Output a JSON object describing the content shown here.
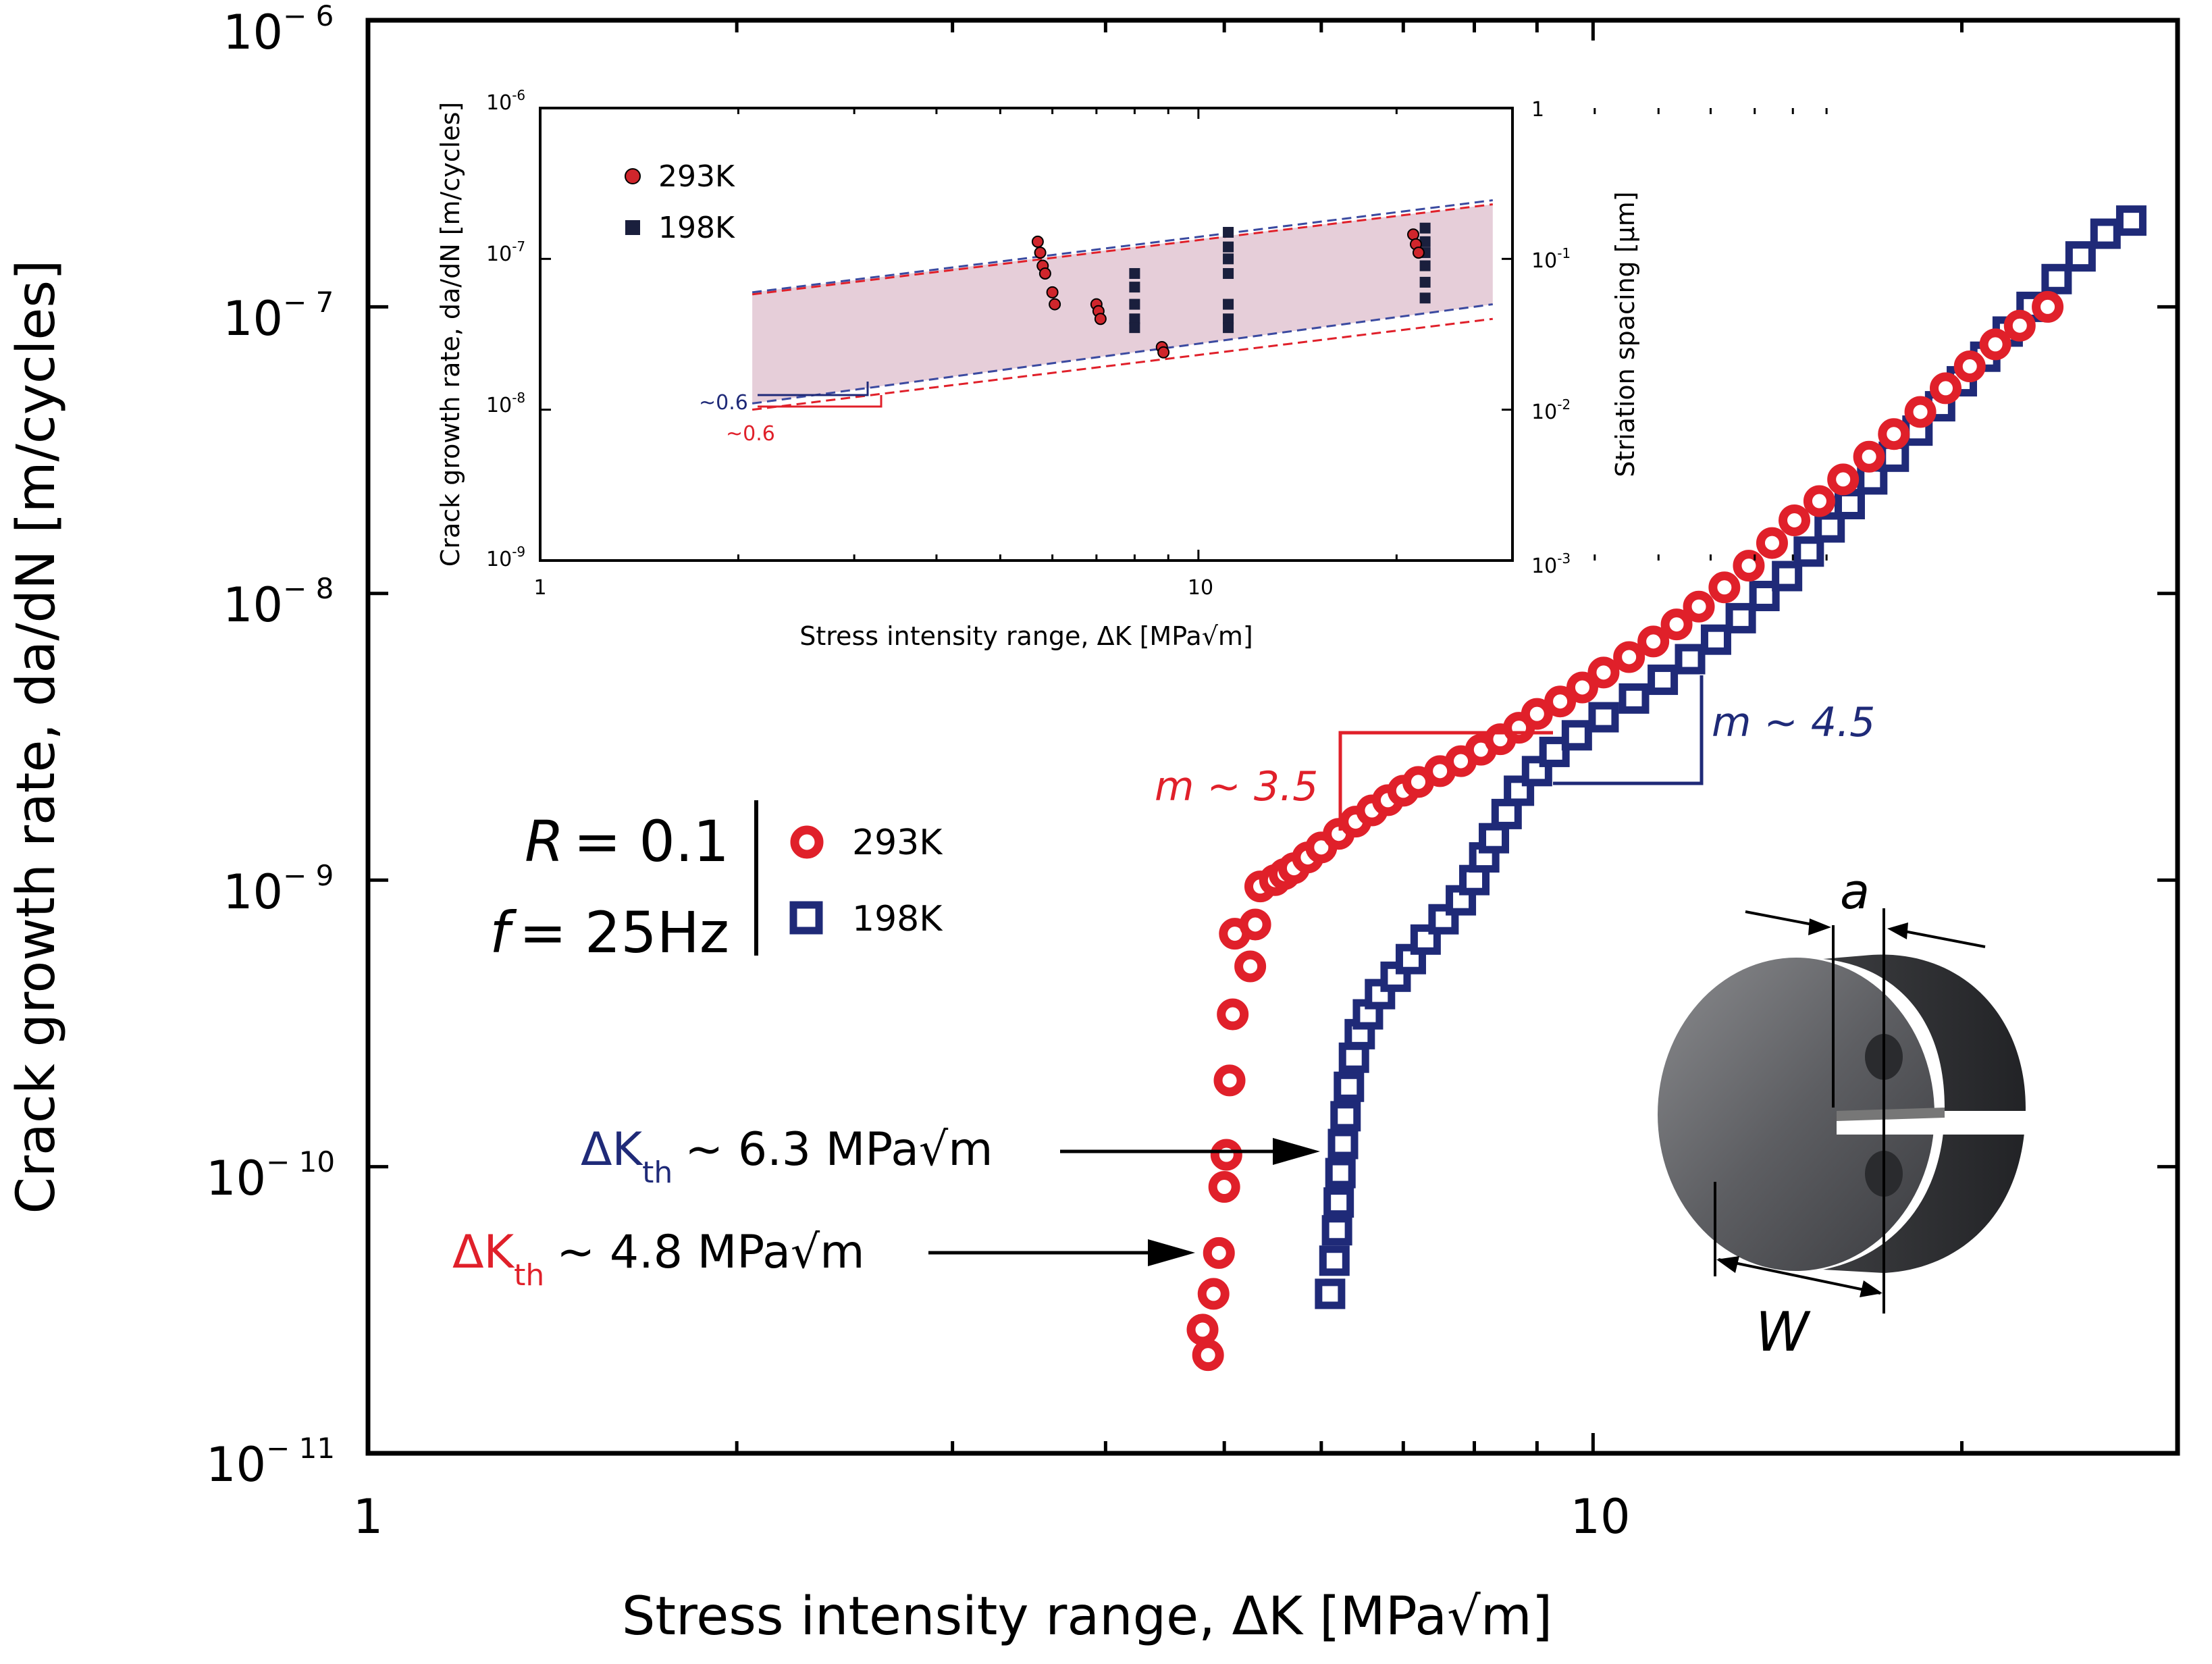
{
  "chart_data": {
    "type": "scatter",
    "title": "",
    "xlabel": "Stress intensity range, ΔK [MPa√m]",
    "ylabel": "Crack growth rate, da/dN [m/cycles]",
    "xscale": "log",
    "yscale": "log",
    "xlim": [
      1,
      30
    ],
    "ylim": [
      1e-11,
      1e-06
    ],
    "x_ticks": [
      {
        "value": 1,
        "label": "1"
      },
      {
        "value": 10,
        "label": "10"
      }
    ],
    "y_ticks": [
      {
        "value": 1e-06,
        "base": "10",
        "exp": "− 6"
      },
      {
        "value": 1e-07,
        "base": "10",
        "exp": "− 7"
      },
      {
        "value": 1e-08,
        "base": "10",
        "exp": "− 8"
      },
      {
        "value": 1e-09,
        "base": "10",
        "exp": "− 9"
      },
      {
        "value": 1e-10,
        "base": "10",
        "exp": "− 10"
      },
      {
        "value": 1e-11,
        "base": "10",
        "exp": "− 11"
      }
    ],
    "conditions": {
      "r_label": "R",
      "r_value": "= 0.1",
      "f_label": "f",
      "f_value": "= 25Hz"
    },
    "legend": [
      {
        "name": "293K",
        "marker": "circle",
        "color": "#e0202a"
      },
      {
        "name": "198K",
        "marker": "square",
        "color": "#1f2a78"
      }
    ],
    "series": [
      {
        "name": "293K",
        "color": "#e0202a",
        "points": [
          [
            4.85,
            2.2e-11
          ],
          [
            4.8,
            2.7e-11
          ],
          [
            4.9,
            3.6e-11
          ],
          [
            4.95,
            5e-11
          ],
          [
            5.0,
            8.5e-11
          ],
          [
            5.02,
            1.1e-10
          ],
          [
            5.05,
            2e-10
          ],
          [
            5.08,
            3.4e-10
          ],
          [
            5.1,
            6.5e-10
          ],
          [
            5.25,
            5e-10
          ],
          [
            5.3,
            7e-10
          ],
          [
            5.35,
            9.5e-10
          ],
          [
            5.5,
            1e-09
          ],
          [
            5.6,
            1.05e-09
          ],
          [
            5.7,
            1.1e-09
          ],
          [
            5.85,
            1.2e-09
          ],
          [
            6.0,
            1.3e-09
          ],
          [
            6.2,
            1.45e-09
          ],
          [
            6.4,
            1.6e-09
          ],
          [
            6.6,
            1.75e-09
          ],
          [
            6.8,
            1.9e-09
          ],
          [
            7.0,
            2.05e-09
          ],
          [
            7.2,
            2.2e-09
          ],
          [
            7.5,
            2.4e-09
          ],
          [
            7.8,
            2.6e-09
          ],
          [
            8.1,
            2.85e-09
          ],
          [
            8.4,
            3.1e-09
          ],
          [
            8.7,
            3.4e-09
          ],
          [
            9.0,
            3.8e-09
          ],
          [
            9.4,
            4.2e-09
          ],
          [
            9.8,
            4.7e-09
          ],
          [
            10.2,
            5.3e-09
          ],
          [
            10.7,
            6e-09
          ],
          [
            11.2,
            6.8e-09
          ],
          [
            11.7,
            7.8e-09
          ],
          [
            12.2,
            9e-09
          ],
          [
            12.8,
            1.05e-08
          ],
          [
            13.4,
            1.25e-08
          ],
          [
            14.0,
            1.5e-08
          ],
          [
            14.6,
            1.8e-08
          ],
          [
            15.3,
            2.1e-08
          ],
          [
            16.0,
            2.5e-08
          ],
          [
            16.8,
            3e-08
          ],
          [
            17.6,
            3.6e-08
          ],
          [
            18.5,
            4.3e-08
          ],
          [
            19.4,
            5.2e-08
          ],
          [
            20.3,
            6.2e-08
          ],
          [
            21.3,
            7.4e-08
          ],
          [
            22.3,
            8.6e-08
          ],
          [
            23.5,
            1e-07
          ]
        ]
      },
      {
        "name": "198K",
        "color": "#1f2a78",
        "points": [
          [
            6.1,
            3.6e-11
          ],
          [
            6.15,
            4.7e-11
          ],
          [
            6.18,
            6e-11
          ],
          [
            6.2,
            7.5e-11
          ],
          [
            6.22,
            9.5e-11
          ],
          [
            6.25,
            1.2e-10
          ],
          [
            6.28,
            1.5e-10
          ],
          [
            6.32,
            1.9e-10
          ],
          [
            6.38,
            2.4e-10
          ],
          [
            6.45,
            2.9e-10
          ],
          [
            6.55,
            3.4e-10
          ],
          [
            6.7,
            4e-10
          ],
          [
            6.9,
            4.6e-10
          ],
          [
            7.1,
            5.3e-10
          ],
          [
            7.3,
            6.2e-10
          ],
          [
            7.55,
            7.3e-10
          ],
          [
            7.8,
            8.5e-10
          ],
          [
            8.0,
            1e-09
          ],
          [
            8.15,
            1.2e-09
          ],
          [
            8.3,
            1.4e-09
          ],
          [
            8.5,
            1.7e-09
          ],
          [
            8.7,
            2.05e-09
          ],
          [
            9.0,
            2.4e-09
          ],
          [
            9.3,
            2.8e-09
          ],
          [
            9.7,
            3.2e-09
          ],
          [
            10.2,
            3.7e-09
          ],
          [
            10.8,
            4.3e-09
          ],
          [
            11.4,
            5e-09
          ],
          [
            12.0,
            5.9e-09
          ],
          [
            12.6,
            6.9e-09
          ],
          [
            13.2,
            8.2e-09
          ],
          [
            13.8,
            9.8e-09
          ],
          [
            14.4,
            1.15e-08
          ],
          [
            15.0,
            1.4e-08
          ],
          [
            15.6,
            1.7e-08
          ],
          [
            16.2,
            2.05e-08
          ],
          [
            16.9,
            2.5e-08
          ],
          [
            17.6,
            3e-08
          ],
          [
            18.4,
            3.7e-08
          ],
          [
            19.2,
            4.5e-08
          ],
          [
            20.0,
            5.5e-08
          ],
          [
            20.9,
            6.7e-08
          ],
          [
            21.8,
            8.2e-08
          ],
          [
            22.8,
            1e-07
          ],
          [
            23.9,
            1.25e-07
          ],
          [
            25.0,
            1.5e-07
          ],
          [
            26.2,
            1.8e-07
          ],
          [
            27.5,
            2e-07
          ]
        ]
      }
    ],
    "annotations": [
      {
        "symbol": "ΔK",
        "sub": "th",
        "text": "~ 6.3 MPa√m",
        "color": "#1f2a78",
        "x": 6.3
      },
      {
        "symbol": "ΔK",
        "sub": "th",
        "text": "~ 4.8 MPa√m",
        "color": "#e0202a",
        "x": 4.8
      },
      {
        "label": "m ~ 3.5",
        "color": "#e0202a"
      },
      {
        "label": "m ~ 4.5",
        "color": "#1f2a78"
      }
    ],
    "specimen_labels": {
      "a": "a",
      "w": "W"
    },
    "inset": {
      "xlabel": "Stress intensity range, ΔK [MPa√m]",
      "ylabel": "Crack growth rate, da/dN [m/cycles]",
      "ylabel_right": "Striation spacing [μm]",
      "xlim": [
        1,
        30
      ],
      "ylim": [
        1e-09,
        1e-06
      ],
      "x_ticks": [
        {
          "value": 1,
          "label": "1"
        },
        {
          "value": 10,
          "label": "10"
        }
      ],
      "y_ticks": [
        {
          "value": 1e-06,
          "base": "10",
          "exp": "-6"
        },
        {
          "value": 1e-07,
          "base": "10",
          "exp": "-7"
        },
        {
          "value": 1e-08,
          "base": "10",
          "exp": "-8"
        },
        {
          "value": 1e-09,
          "base": "10",
          "exp": "-9"
        }
      ],
      "y_ticks_right": [
        {
          "value": 1,
          "base": "1",
          "exp": ""
        },
        {
          "value": 0.1,
          "base": "10",
          "exp": "-1"
        },
        {
          "value": 0.01,
          "base": "10",
          "exp": "-2"
        },
        {
          "value": 0.001,
          "base": "10",
          "exp": "-3"
        }
      ],
      "legend": [
        {
          "name": "293K",
          "marker": "circle",
          "color": "#d0262c"
        },
        {
          "name": "198K",
          "marker": "square",
          "color": "#1a1f3d"
        }
      ],
      "band_x": [
        2.1,
        28
      ],
      "band_upper": [
        6e-08,
        2.3e-07
      ],
      "band_lower_198K": [
        1.1e-08,
        5e-08
      ],
      "band_lower_293K": [
        1e-08,
        4e-08
      ],
      "slope_labels": [
        {
          "text": "~0.6",
          "color": "#1f2a78"
        },
        {
          "text": "~0.6",
          "color": "#e0202a"
        }
      ],
      "series_293K": [
        [
          5.7,
          1.3e-07
        ],
        [
          5.75,
          1.1e-07
        ],
        [
          5.8,
          9e-08
        ],
        [
          5.85,
          8e-08
        ],
        [
          6.0,
          6e-08
        ],
        [
          6.05,
          5e-08
        ],
        [
          7.0,
          5e-08
        ],
        [
          7.05,
          4.5e-08
        ],
        [
          7.1,
          4e-08
        ],
        [
          8.8,
          2.6e-08
        ],
        [
          8.85,
          2.4e-08
        ],
        [
          21.2,
          1.45e-07
        ],
        [
          21.4,
          1.25e-07
        ],
        [
          21.6,
          1.1e-07
        ]
      ],
      "series_198K": [
        [
          8.0,
          8e-08
        ],
        [
          8.0,
          6.5e-08
        ],
        [
          8.0,
          5e-08
        ],
        [
          8.0,
          4e-08
        ],
        [
          8.0,
          3.5e-08
        ],
        [
          11.1,
          1.5e-07
        ],
        [
          11.1,
          1.2e-07
        ],
        [
          11.1,
          1e-07
        ],
        [
          11.1,
          8e-08
        ],
        [
          11.1,
          5e-08
        ],
        [
          11.1,
          4e-08
        ],
        [
          11.1,
          3.5e-08
        ],
        [
          22.1,
          1.6e-07
        ],
        [
          22.1,
          1.3e-07
        ],
        [
          22.1,
          1.1e-07
        ],
        [
          22.1,
          9e-08
        ],
        [
          22.1,
          7e-08
        ],
        [
          22.1,
          5.5e-08
        ]
      ]
    }
  }
}
